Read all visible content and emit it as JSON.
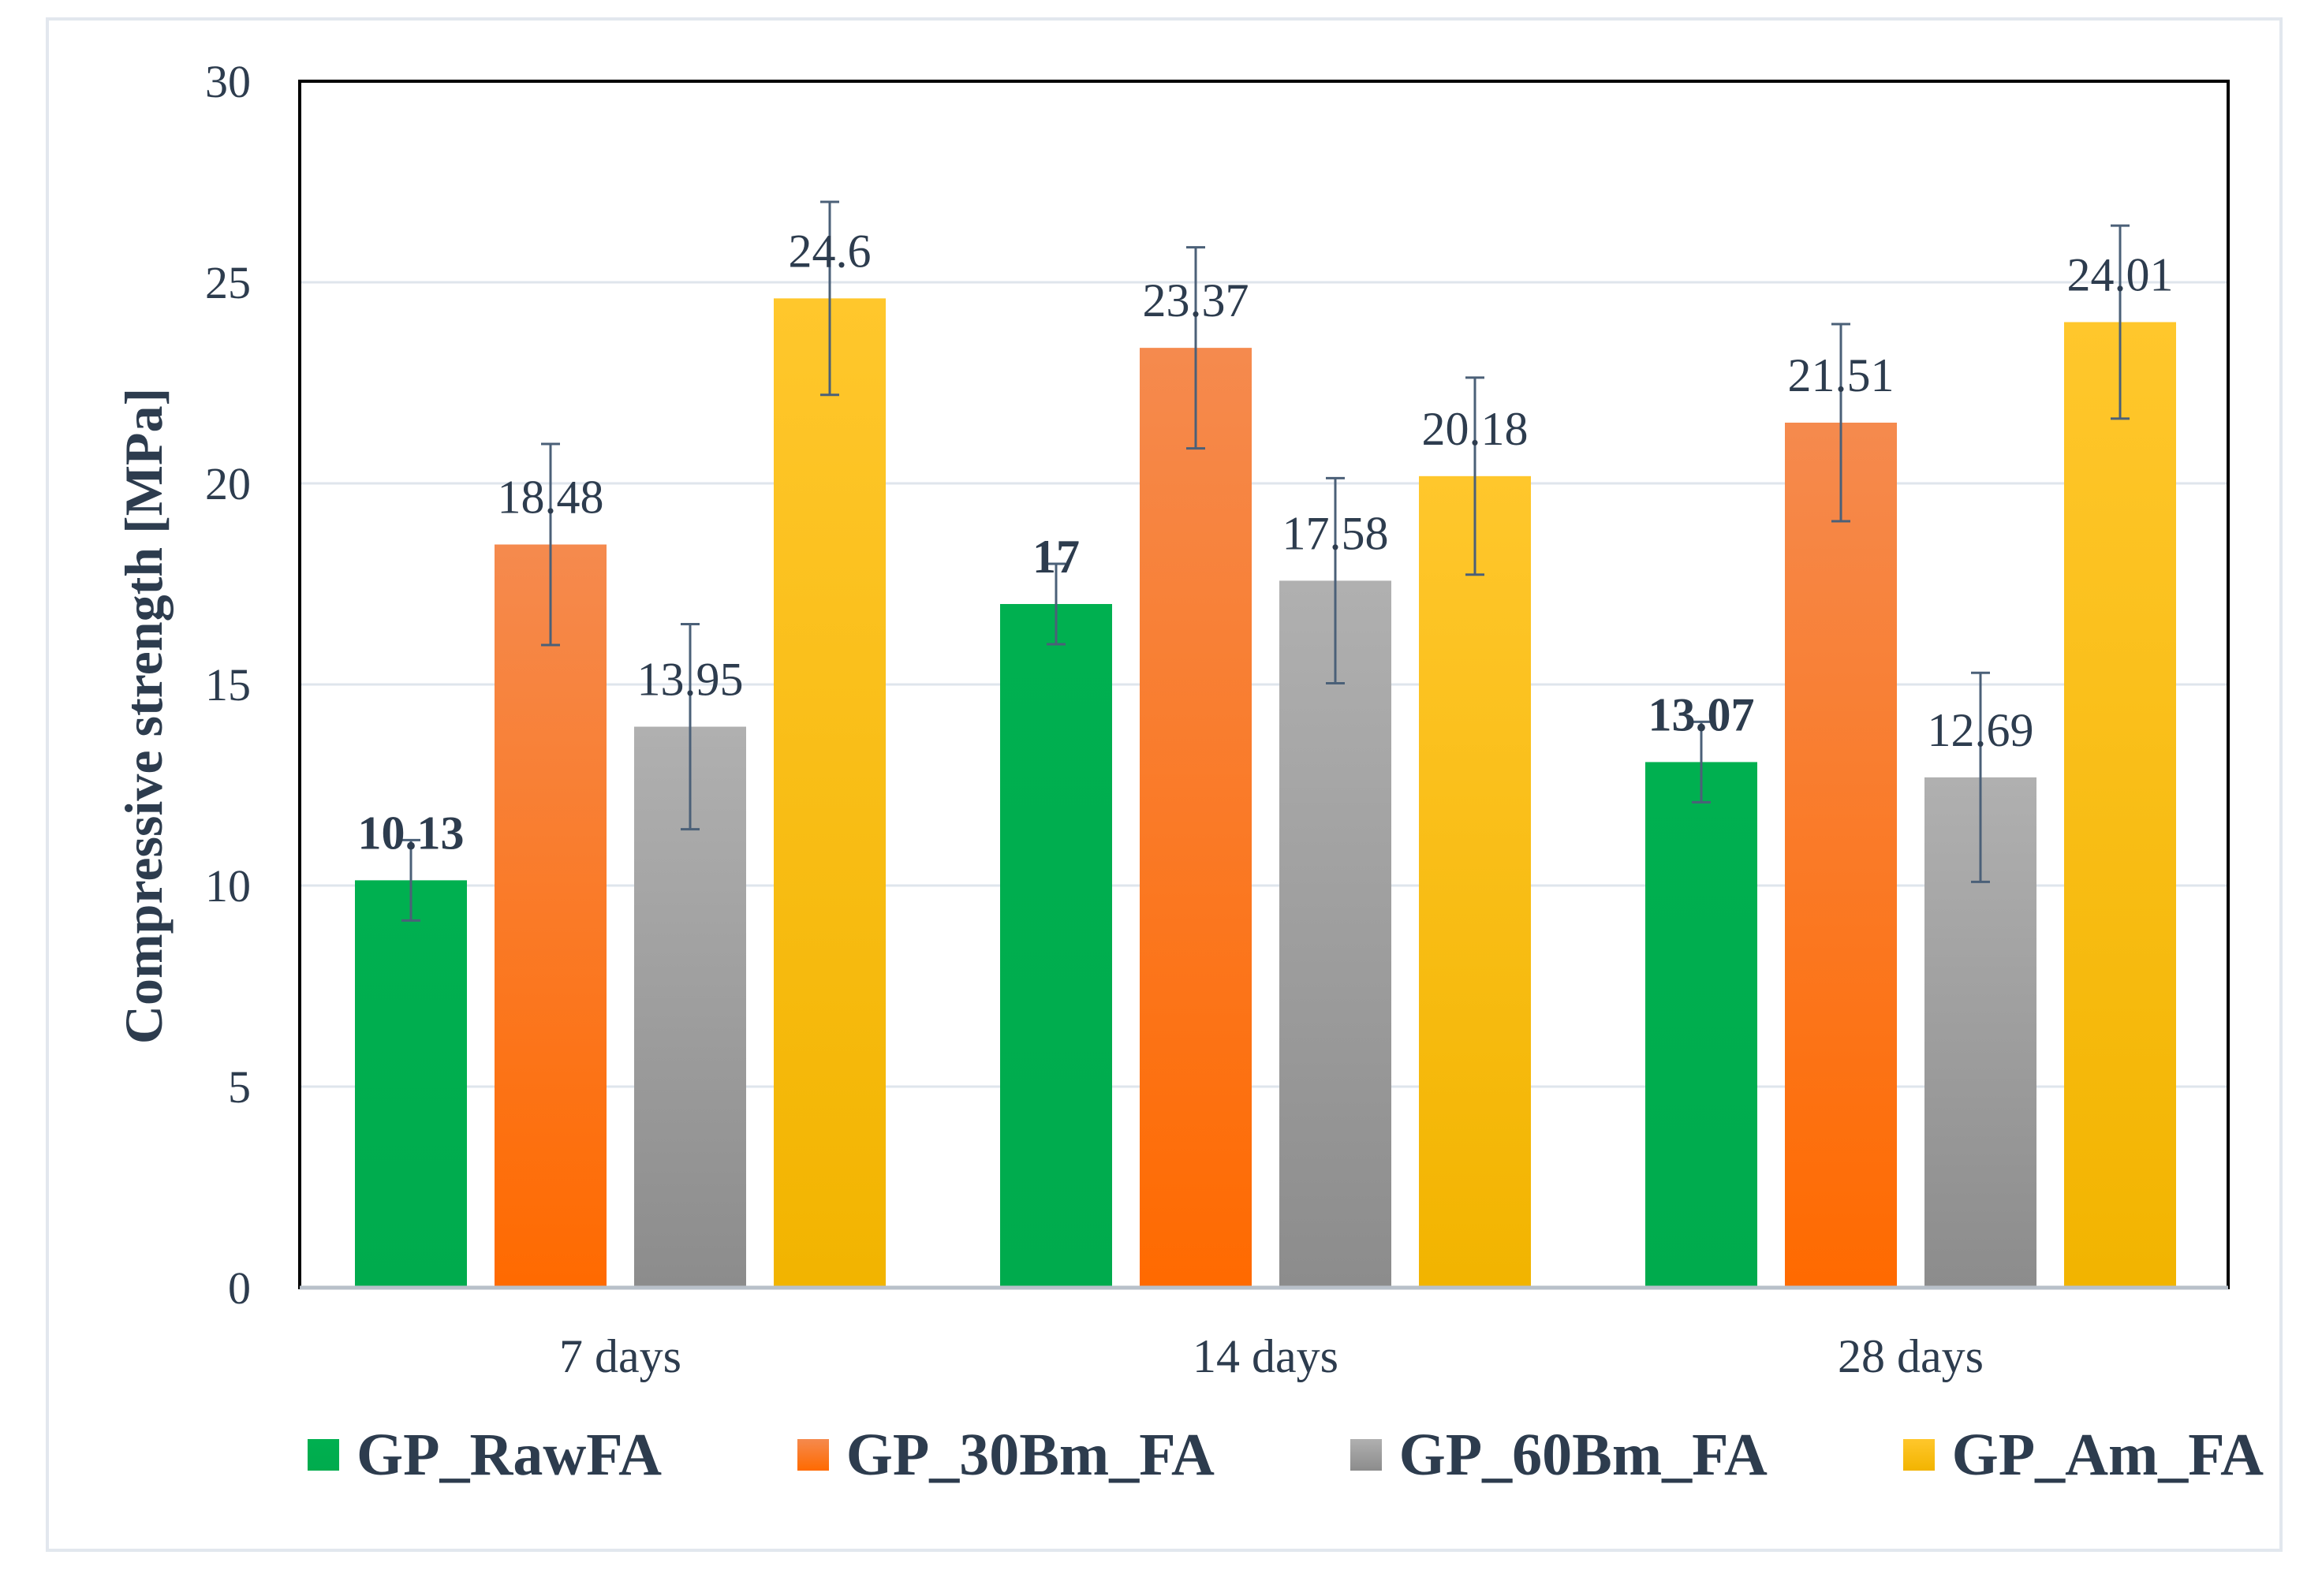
{
  "chart_data": {
    "type": "bar",
    "title": "",
    "xlabel": "",
    "ylabel": "Compressive strength [MPa]",
    "ylim": [
      0,
      30
    ],
    "yticks": [
      0,
      5,
      10,
      15,
      20,
      25,
      30
    ],
    "grid": true,
    "legend_position": "bottom",
    "categories": [
      "7 days",
      "14 days",
      "28 days"
    ],
    "series": [
      {
        "name": "GP_RawFA",
        "color": "#00b050",
        "color_dark": "#00ab4d",
        "values": [
          10.13,
          17,
          13.07
        ],
        "labels": [
          "10.13",
          "17",
          "13.07"
        ],
        "errors": [
          1.0,
          1.0,
          1.0
        ],
        "bold_labels": true
      },
      {
        "name": "GP_30Bm_FA",
        "color": "#f58a4e",
        "color_dark": "#ff6a00",
        "values": [
          18.48,
          23.37,
          21.51
        ],
        "labels": [
          "18.48",
          "23.37",
          "21.51"
        ],
        "errors": [
          2.5,
          2.5,
          2.45
        ],
        "bold_labels": false
      },
      {
        "name": "GP_60Bm_FA",
        "color": "#b0b0b0",
        "color_dark": "#8c8c8c",
        "values": [
          13.95,
          17.58,
          12.69
        ],
        "labels": [
          "13.95",
          "17.58",
          "12.69"
        ],
        "errors": [
          2.55,
          2.55,
          2.6
        ],
        "bold_labels": false
      },
      {
        "name": "GP_Am_FA",
        "color": "#ffc72c",
        "color_dark": "#f2b400",
        "values": [
          24.6,
          20.18,
          24.01
        ],
        "labels": [
          "24.6",
          "20.18",
          "24.01"
        ],
        "errors": [
          2.4,
          2.45,
          2.4
        ],
        "bold_labels": false
      }
    ]
  }
}
